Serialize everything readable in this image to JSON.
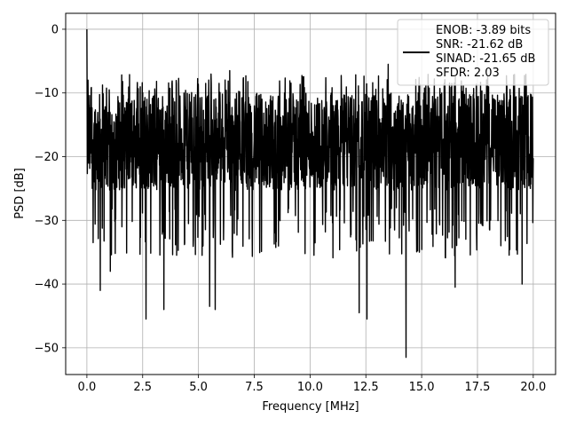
{
  "chart_data": {
    "type": "line",
    "title": "",
    "xlabel": "Frequency [MHz]",
    "ylabel": "PSD [dB]",
    "xlim": [
      -0.95,
      21.0
    ],
    "ylim": [
      -54.2,
      2.5
    ],
    "xticks": [
      0.0,
      2.5,
      5.0,
      7.5,
      10.0,
      12.5,
      15.0,
      17.5,
      20.0
    ],
    "xtick_labels": [
      "0.0",
      "2.5",
      "5.0",
      "7.5",
      "10.0",
      "12.5",
      "15.0",
      "17.5",
      "20.0"
    ],
    "yticks": [
      0,
      -10,
      -20,
      -30,
      -40,
      -50
    ],
    "ytick_labels": [
      "0",
      "−10",
      "−20",
      "−30",
      "−40",
      "−50"
    ],
    "grid": true,
    "legend_position": "top-right",
    "series": [
      {
        "name": "ENOB: -3.89 bits\nSNR: -21.62 dB\nSINAD: -21.65 dB\nSFDR: 2.03",
        "legend_lines": [
          "ENOB: -3.89 bits",
          "SNR: -21.62 dB",
          "SINAD: -21.65 dB",
          "SFDR: 2.03"
        ],
        "color": "#000000",
        "x_range": [
          0.0,
          20.0
        ],
        "typical_band": [
          -28,
          -10
        ],
        "peaks": [
          {
            "x": 0.0,
            "y": 0.0
          },
          {
            "x": 0.05,
            "y": -8.0
          },
          {
            "x": 6.4,
            "y": -6.5
          },
          {
            "x": 13.5,
            "y": -5.5
          }
        ],
        "dips": [
          {
            "x": 0.28,
            "y": -33.5
          },
          {
            "x": 0.6,
            "y": -41.0
          },
          {
            "x": 1.05,
            "y": -38.0
          },
          {
            "x": 2.65,
            "y": -45.5
          },
          {
            "x": 3.45,
            "y": -44.0
          },
          {
            "x": 5.5,
            "y": -43.5
          },
          {
            "x": 5.75,
            "y": -44.0
          },
          {
            "x": 12.2,
            "y": -44.5
          },
          {
            "x": 12.55,
            "y": -45.5
          },
          {
            "x": 14.3,
            "y": -51.5
          },
          {
            "x": 16.5,
            "y": -40.5
          },
          {
            "x": 19.5,
            "y": -40.0
          }
        ]
      }
    ]
  }
}
